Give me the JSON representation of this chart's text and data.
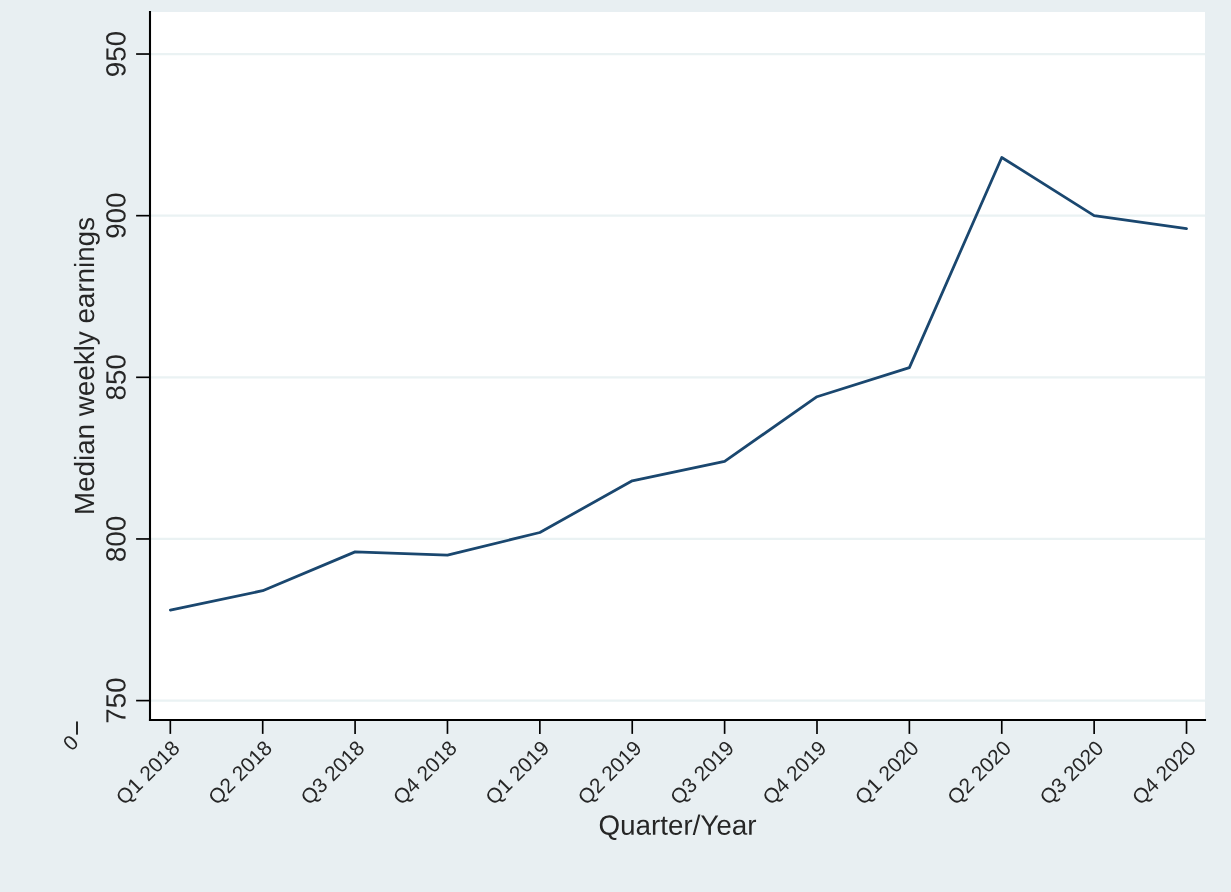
{
  "chart_data": {
    "type": "line",
    "xlabel": "Quarter/Year",
    "ylabel": "Median weekly earnings",
    "categories": [
      "Q1 2018",
      "Q2 2018",
      "Q3 2018",
      "Q4 2018",
      "Q1 2019",
      "Q2 2019",
      "Q3 2019",
      "Q4 2019",
      "Q1 2020",
      "Q2 2020",
      "Q3 2020",
      "Q4 2020"
    ],
    "series": [
      {
        "color": "#1a476f",
        "values": [
          778,
          784,
          796,
          795,
          802,
          818,
          824,
          844,
          853,
          918,
          900,
          896
        ]
      }
    ],
    "ylim": [
      744,
      963
    ],
    "yticks": [
      750,
      800,
      850,
      900,
      950
    ],
    "grid": "y",
    "legend": false,
    "marker": "none",
    "line_style": "solid",
    "annotations": [
      "0"
    ]
  }
}
